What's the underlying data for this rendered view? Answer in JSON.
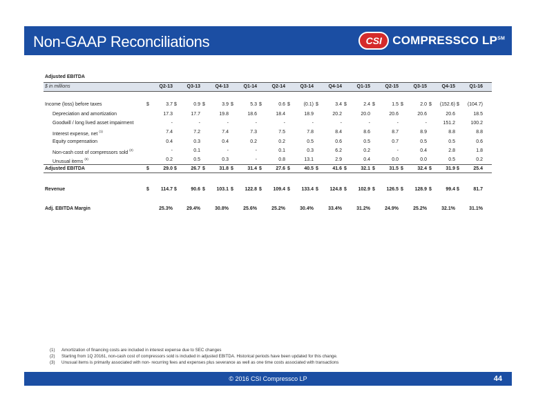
{
  "header": {
    "title": "Non-GAAP Reconciliations",
    "logo_badge": "CSI",
    "logo_text": "COMPRESSCO LP",
    "logo_tm": "SM"
  },
  "table": {
    "title": "Adjusted EBITDA",
    "unit": "$ in millions",
    "quarters": [
      "Q2-13",
      "Q3-13",
      "Q4-13",
      "Q1-14",
      "Q2-14",
      "Q3-14",
      "Q4-14",
      "Q1-15",
      "Q2-15",
      "Q3-15",
      "Q4-15",
      "Q1-16"
    ],
    "rows": [
      {
        "label": "Income (loss) before taxes",
        "sup": "",
        "indent": false,
        "bold": false,
        "dollar": true,
        "values": [
          "3.7",
          "0.9",
          "3.9",
          "5.3",
          "0.6",
          "(0.1)",
          "3.4",
          "2.4",
          "1.5",
          "2.0",
          "(152.6)",
          "(104.7)"
        ]
      },
      {
        "label": "Depreciation and amortization",
        "sup": "",
        "indent": true,
        "bold": false,
        "dollar": false,
        "values": [
          "17.3",
          "17.7",
          "19.8",
          "18.6",
          "18.4",
          "18.9",
          "20.2",
          "20.0",
          "20.6",
          "20.6",
          "20.6",
          "18.5"
        ]
      },
      {
        "label": "Goodwill / long lived asset impairment",
        "sup": "",
        "indent": true,
        "bold": false,
        "dollar": false,
        "values": [
          "-",
          "-",
          "-",
          "-",
          "-",
          "-",
          "-",
          "-",
          "-",
          "-",
          "151.2",
          "100.2"
        ]
      },
      {
        "label": "Interest expense, net",
        "sup": "(1)",
        "indent": true,
        "bold": false,
        "dollar": false,
        "values": [
          "7.4",
          "7.2",
          "7.4",
          "7.3",
          "7.5",
          "7.8",
          "8.4",
          "8.6",
          "8.7",
          "8.9",
          "8.8",
          "8.8"
        ]
      },
      {
        "label": "Equity compensation",
        "sup": "",
        "indent": true,
        "bold": false,
        "dollar": false,
        "values": [
          "0.4",
          "0.3",
          "0.4",
          "0.2",
          "0.2",
          "0.5",
          "0.6",
          "0.5",
          "0.7",
          "0.5",
          "0.5",
          "0.6"
        ]
      },
      {
        "label": "Non-cash cost of compressors sold",
        "sup": "(2)",
        "indent": true,
        "bold": false,
        "dollar": false,
        "values": [
          "-",
          "0.1",
          "-",
          "-",
          "0.1",
          "0.3",
          "6.2",
          "0.2",
          "-",
          "0.4",
          "2.8",
          "1.8"
        ]
      },
      {
        "label": "Unusual items",
        "sup": "(3)",
        "indent": true,
        "bold": false,
        "dollar": false,
        "values": [
          "0.2",
          "0.5",
          "0.3",
          "-",
          "0.8",
          "13.1",
          "2.9",
          "0.4",
          "0.0",
          "0.0",
          "0.5",
          "0.2"
        ]
      },
      {
        "label": "Adjusted EBITDA",
        "sup": "",
        "indent": false,
        "bold": true,
        "dollar": true,
        "values": [
          "29.0",
          "26.7",
          "31.8",
          "31.4",
          "27.6",
          "40.5",
          "41.6",
          "32.1",
          "31.5",
          "32.4",
          "31.9",
          "25.4"
        ]
      },
      {
        "label": "Revenue",
        "sup": "",
        "indent": false,
        "bold": true,
        "dollar": true,
        "values": [
          "114.7",
          "90.6",
          "103.1",
          "122.8",
          "109.4",
          "133.4",
          "124.8",
          "102.9",
          "126.5",
          "128.9",
          "99.4",
          "81.7"
        ]
      },
      {
        "label": "Adj. EBITDA Margin",
        "sup": "",
        "indent": false,
        "bold": true,
        "dollar": false,
        "values": [
          "25.3%",
          "29.4%",
          "30.8%",
          "25.6%",
          "25.2%",
          "30.4%",
          "33.4%",
          "31.2%",
          "24.9%",
          "25.2%",
          "32.1%",
          "31.1%"
        ]
      }
    ]
  },
  "footnotes": [
    {
      "num": "(1)",
      "text": "Amortization of financing costs are included in interest expense due to SEC changes"
    },
    {
      "num": "(2)",
      "text": "Starting from 1Q 20161, non-cash cost of compressors sold is included in adjusted EBITDA. Historical periods have been updated for this change."
    },
    {
      "num": "(3)",
      "text": "Unusual items is primarily associated with non- recurring fees and expenses plus severance as well as one time costs associated with transactions"
    }
  ],
  "footer": {
    "copyright": "© 2016 CSI Compressco LP",
    "page": "44"
  },
  "colors": {
    "brand_blue": "#1b4ea3",
    "logo_red": "#d52b2b",
    "header_row_bg": "#dde3ec"
  }
}
